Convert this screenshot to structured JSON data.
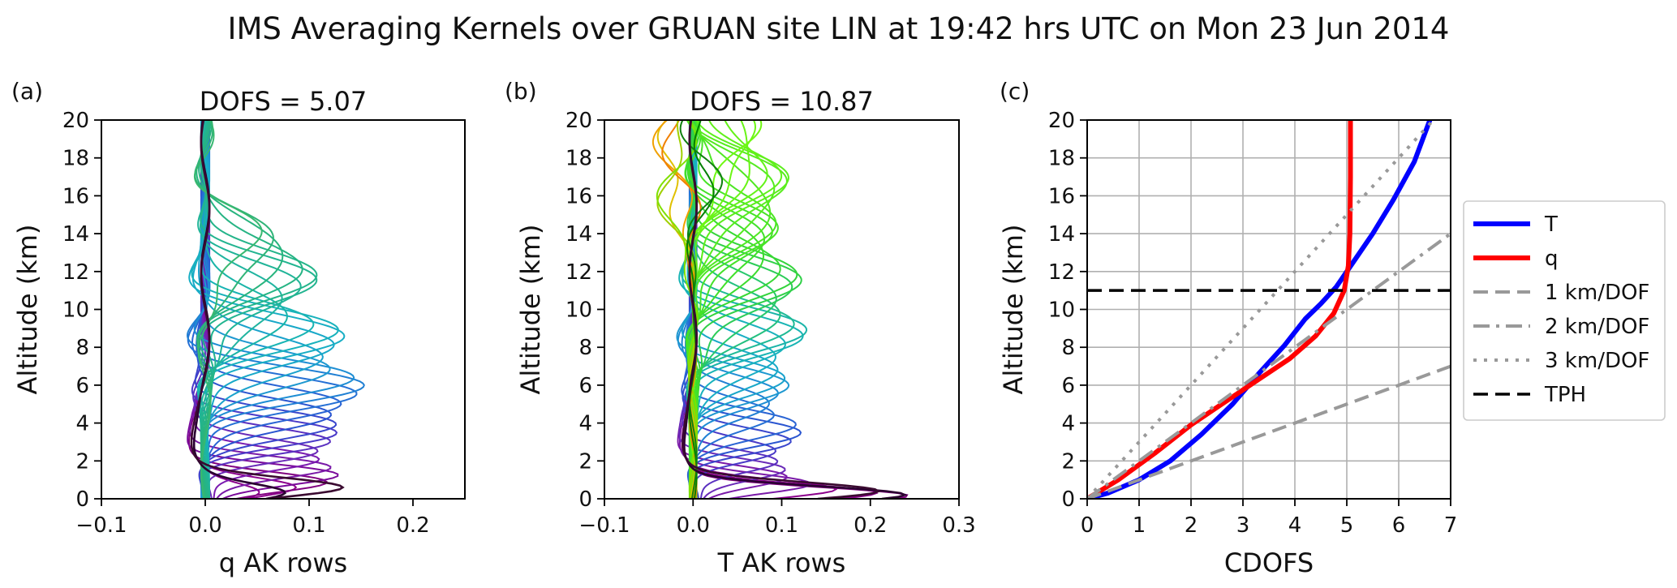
{
  "figure": {
    "title": "IMS Averaging Kernels over GRUAN site LIN at 19:42 hrs UTC on Mon 23 Jun 2014"
  },
  "chart_data": [
    {
      "type": "line",
      "panel_label": "(a)",
      "title": "DOFS = 5.07",
      "xlabel": "q AK rows",
      "ylabel": "Altitude (km)",
      "xlim": [
        -0.1,
        0.25
      ],
      "ylim": [
        0,
        20
      ],
      "xticks": [
        -0.1,
        0.0,
        0.1,
        0.2
      ],
      "xtick_labels": [
        "−0.1",
        "0.0",
        "0.1",
        "0.2"
      ],
      "yticks": [
        0,
        2,
        4,
        6,
        8,
        10,
        12,
        14,
        16,
        18,
        20
      ],
      "grid": false,
      "rows": [
        {
          "peak": 0.3,
          "amp": 0.045,
          "color": "#8b008b"
        },
        {
          "peak": 0.6,
          "amp": 0.075,
          "color": "#8b008b"
        },
        {
          "peak": 0.9,
          "amp": 0.105,
          "color": "#800080"
        },
        {
          "peak": 1.3,
          "amp": 0.125,
          "color": "#7a0a9a"
        },
        {
          "peak": 1.7,
          "amp": 0.13,
          "color": "#7a1aa8"
        },
        {
          "peak": 2.1,
          "amp": 0.125,
          "color": "#7a1ab0"
        },
        {
          "peak": 2.5,
          "amp": 0.12,
          "color": "#6a2ab8"
        },
        {
          "peak": 3.0,
          "amp": 0.12,
          "color": "#5a30c0"
        },
        {
          "peak": 3.5,
          "amp": 0.12,
          "color": "#4a3ac8"
        },
        {
          "peak": 4.0,
          "amp": 0.125,
          "color": "#3a46cc"
        },
        {
          "peak": 4.5,
          "amp": 0.13,
          "color": "#2a55d0"
        },
        {
          "peak": 5.0,
          "amp": 0.14,
          "color": "#2a64d4"
        },
        {
          "peak": 5.5,
          "amp": 0.145,
          "color": "#2570d5"
        },
        {
          "peak": 6.0,
          "amp": 0.145,
          "color": "#2080d4"
        },
        {
          "peak": 6.5,
          "amp": 0.14,
          "color": "#1e8ed4"
        },
        {
          "peak": 7.0,
          "amp": 0.13,
          "color": "#1e98d0"
        },
        {
          "peak": 7.5,
          "amp": 0.13,
          "color": "#1aa2cc"
        },
        {
          "peak": 8.0,
          "amp": 0.13,
          "color": "#18a8c8"
        },
        {
          "peak": 8.5,
          "amp": 0.125,
          "color": "#18aec4"
        },
        {
          "peak": 9.0,
          "amp": 0.115,
          "color": "#18b2bc"
        },
        {
          "peak": 9.5,
          "amp": 0.1,
          "color": "#18b4b4"
        },
        {
          "peak": 10.0,
          "amp": 0.09,
          "color": "#1ab4a8"
        },
        {
          "peak": 10.5,
          "amp": 0.09,
          "color": "#20b4a0"
        },
        {
          "peak": 11.0,
          "amp": 0.095,
          "color": "#20b498"
        },
        {
          "peak": 11.5,
          "amp": 0.1,
          "color": "#22b490"
        },
        {
          "peak": 12.0,
          "amp": 0.1,
          "color": "#24b48a"
        },
        {
          "peak": 12.5,
          "amp": 0.095,
          "color": "#26b484"
        },
        {
          "peak": 13.0,
          "amp": 0.085,
          "color": "#28b47e"
        },
        {
          "peak": 13.5,
          "amp": 0.07,
          "color": "#30b478"
        },
        {
          "peak": 14.0,
          "amp": 0.05,
          "color": "#38b870"
        }
      ],
      "dark_rows": [
        {
          "peak": 0.3,
          "amp": 0.07,
          "color": "#2a0030"
        },
        {
          "peak": 0.6,
          "amp": 0.12,
          "color": "#3a0a30"
        }
      ]
    },
    {
      "type": "line",
      "panel_label": "(b)",
      "title": "DOFS = 10.87",
      "xlabel": "T AK rows",
      "ylabel": "Altitude (km)",
      "xlim": [
        -0.1,
        0.3
      ],
      "ylim": [
        0,
        20
      ],
      "xticks": [
        -0.1,
        0.0,
        0.1,
        0.2,
        0.3
      ],
      "xtick_labels": [
        "−0.1",
        "0.0",
        "0.1",
        "0.2",
        "0.3"
      ],
      "yticks": [
        0,
        2,
        4,
        6,
        8,
        10,
        12,
        14,
        16,
        18,
        20
      ],
      "grid": false,
      "rows": [
        {
          "peak": 0.15,
          "amp": 0.24,
          "color": "#800080"
        },
        {
          "peak": 0.3,
          "amp": 0.2,
          "color": "#880088"
        },
        {
          "peak": 0.5,
          "amp": 0.15,
          "color": "#8b008b"
        },
        {
          "peak": 0.8,
          "amp": 0.12,
          "color": "#7a1aa8"
        },
        {
          "peak": 1.2,
          "amp": 0.1,
          "color": "#7a1aa8"
        },
        {
          "peak": 1.6,
          "amp": 0.11,
          "color": "#6a2ab8"
        },
        {
          "peak": 2.0,
          "amp": 0.11,
          "color": "#5a30c0"
        },
        {
          "peak": 2.5,
          "amp": 0.105,
          "color": "#4a3ac8"
        },
        {
          "peak": 3.0,
          "amp": 0.11,
          "color": "#3a46cc"
        },
        {
          "peak": 3.5,
          "amp": 0.115,
          "color": "#2a55d0"
        },
        {
          "peak": 4.0,
          "amp": 0.115,
          "color": "#2a64d4"
        },
        {
          "peak": 4.5,
          "amp": 0.1,
          "color": "#2570d5"
        },
        {
          "peak": 5.0,
          "amp": 0.095,
          "color": "#2080d4"
        },
        {
          "peak": 5.5,
          "amp": 0.095,
          "color": "#1e8ed4"
        },
        {
          "peak": 6.0,
          "amp": 0.1,
          "color": "#1e98d0"
        },
        {
          "peak": 6.5,
          "amp": 0.1,
          "color": "#1aa2cc"
        },
        {
          "peak": 7.0,
          "amp": 0.105,
          "color": "#18a8c8"
        },
        {
          "peak": 7.5,
          "amp": 0.11,
          "color": "#18aec4"
        },
        {
          "peak": 8.0,
          "amp": 0.11,
          "color": "#18b2bc"
        },
        {
          "peak": 8.5,
          "amp": 0.115,
          "color": "#18b4b4"
        },
        {
          "peak": 9.0,
          "amp": 0.115,
          "color": "#1ab4a8"
        },
        {
          "peak": 9.5,
          "amp": 0.11,
          "color": "#1fba96"
        },
        {
          "peak": 10.0,
          "amp": 0.11,
          "color": "#24c080"
        },
        {
          "peak": 10.5,
          "amp": 0.11,
          "color": "#28c86c"
        },
        {
          "peak": 11.0,
          "amp": 0.115,
          "color": "#2ccc58"
        },
        {
          "peak": 11.5,
          "amp": 0.115,
          "color": "#30d048"
        },
        {
          "peak": 12.0,
          "amp": 0.11,
          "color": "#34d43c"
        },
        {
          "peak": 12.5,
          "amp": 0.1,
          "color": "#38d834"
        },
        {
          "peak": 13.0,
          "amp": 0.09,
          "color": "#3cdc2e"
        },
        {
          "peak": 13.5,
          "amp": 0.085,
          "color": "#40e02a"
        },
        {
          "peak": 14.0,
          "amp": 0.085,
          "color": "#44e228"
        },
        {
          "peak": 14.5,
          "amp": 0.09,
          "color": "#48e426"
        },
        {
          "peak": 15.0,
          "amp": 0.095,
          "color": "#4ce624"
        },
        {
          "peak": 15.5,
          "amp": 0.1,
          "color": "#50e822"
        },
        {
          "peak": 16.0,
          "amp": 0.1,
          "color": "#54ea20"
        },
        {
          "peak": 16.5,
          "amp": 0.1,
          "color": "#58ec1e"
        },
        {
          "peak": 17.0,
          "amp": 0.095,
          "color": "#5cee1c"
        },
        {
          "peak": 17.5,
          "amp": 0.09,
          "color": "#60f01a"
        },
        {
          "peak": 18.0,
          "amp": 0.085,
          "color": "#64f218"
        },
        {
          "peak": 18.5,
          "amp": 0.08,
          "color": "#68f416"
        },
        {
          "peak": 19.0,
          "amp": 0.075,
          "color": "#6cf614"
        },
        {
          "peak": 19.5,
          "amp": 0.07,
          "color": "#70f812"
        }
      ],
      "dark_rows": [
        {
          "peak": 0.2,
          "amp": 0.235,
          "color": "#2a0030"
        },
        {
          "peak": 0.4,
          "amp": 0.2,
          "color": "#3a0a30"
        }
      ],
      "upper_rows": [
        {
          "peak": 17.0,
          "amp": -0.03,
          "color": "#e0c000"
        },
        {
          "peak": 18.0,
          "amp": -0.025,
          "color": "#f0a000"
        },
        {
          "peak": 19.0,
          "amp": -0.02,
          "color": "#f08000"
        },
        {
          "peak": 16.0,
          "amp": -0.028,
          "color": "#a0d000"
        },
        {
          "peak": 15.0,
          "amp": -0.025,
          "color": "#80e000"
        },
        {
          "peak": 18.5,
          "amp": 0.02,
          "color": "#008000"
        },
        {
          "peak": 17.5,
          "amp": 0.02,
          "color": "#108010"
        }
      ]
    },
    {
      "type": "line",
      "panel_label": "(c)",
      "title": "",
      "xlabel": "CDOFS",
      "ylabel": "Altitude (km)",
      "xlim": [
        0,
        7
      ],
      "ylim": [
        0,
        20
      ],
      "xticks": [
        0,
        1,
        2,
        3,
        4,
        5,
        6,
        7
      ],
      "xtick_labels": [
        "0",
        "1",
        "2",
        "3",
        "4",
        "5",
        "6",
        "7"
      ],
      "yticks": [
        0,
        2,
        4,
        6,
        8,
        10,
        12,
        14,
        16,
        18,
        20
      ],
      "grid": true,
      "legend_position": "outside-right",
      "series": [
        {
          "name": "T",
          "color": "#0000ff",
          "style": "solid",
          "width": 6,
          "x": [
            0,
            0.4,
            1.0,
            1.6,
            2.2,
            2.8,
            3.3,
            3.8,
            4.2,
            4.5,
            4.8,
            5.1,
            5.5,
            5.9,
            6.3,
            6.6
          ],
          "y": [
            0,
            0.3,
            1.0,
            2.0,
            3.4,
            5.0,
            6.6,
            8.1,
            9.5,
            10.3,
            11.2,
            12.4,
            14.0,
            15.8,
            17.8,
            20.0
          ]
        },
        {
          "name": "q",
          "color": "#ff0000",
          "style": "solid",
          "width": 6,
          "x": [
            0,
            0.6,
            1.3,
            2.0,
            2.7,
            3.3,
            3.9,
            4.4,
            4.75,
            4.95,
            5.03,
            5.06,
            5.07,
            5.07
          ],
          "y": [
            0,
            1.0,
            2.4,
            3.9,
            5.2,
            6.3,
            7.4,
            8.6,
            9.8,
            11.0,
            12.3,
            14.0,
            17.0,
            20.0
          ]
        },
        {
          "name": "1 km/DOF",
          "color": "#999999",
          "style": "dashed",
          "width": 4,
          "x": [
            0,
            7
          ],
          "y": [
            0,
            7
          ]
        },
        {
          "name": "2 km/DOF",
          "color": "#999999",
          "style": "dashdot",
          "width": 4,
          "x": [
            0,
            7
          ],
          "y": [
            0,
            14
          ]
        },
        {
          "name": "3 km/DOF",
          "color": "#999999",
          "style": "dotted",
          "width": 4,
          "x": [
            0,
            6.667
          ],
          "y": [
            0,
            20
          ]
        },
        {
          "name": "TPH",
          "color": "#000000",
          "style": "dashed",
          "width": 3.5,
          "x": [
            0,
            7
          ],
          "y": [
            11,
            11
          ]
        }
      ]
    }
  ]
}
